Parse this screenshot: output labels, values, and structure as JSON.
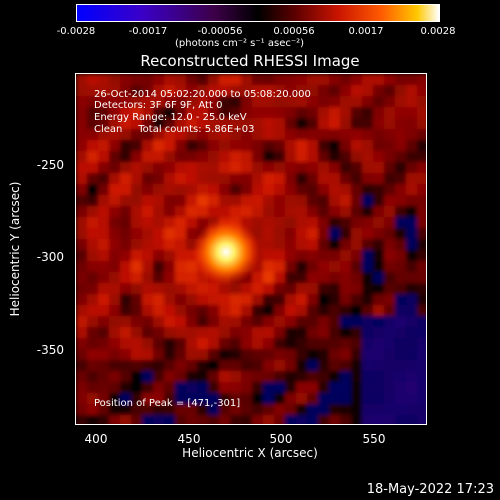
{
  "chart_data": {
    "type": "heatmap",
    "title": "Reconstructed RHESSI Image",
    "xlabel": "Heliocentric X (arcsec)",
    "ylabel": "Heliocentric Y (arcsec)",
    "xlim": [
      390,
      580
    ],
    "ylim": [
      -395,
      -205
    ],
    "x_ticks": [
      "400",
      "450",
      "500",
      "550"
    ],
    "y_ticks": [
      "-250",
      "-300",
      "-350"
    ],
    "colorbar": {
      "range": [
        -0.0028,
        0.0028
      ],
      "ticks": [
        "-0.0028",
        "-0.0017",
        "-0.00056",
        "0.00056",
        "0.0017",
        "0.0028"
      ],
      "unit": "(photons cm⁻² s⁻¹ asec⁻²)"
    },
    "annotations": [
      "26-Oct-2014 05:02:20.000 to 05:08:20.000",
      "Detectors: 3F 6F 9F, Att 0",
      "Energy Range: 12.0 - 25.0 keV",
      "Clean     Total counts: 5.86E+03"
    ],
    "peak_label": "Position of Peak = [471,-301]",
    "peak": {
      "x": 471,
      "y": -301
    }
  },
  "footer": {
    "date": "18-May-2022 17:23"
  }
}
